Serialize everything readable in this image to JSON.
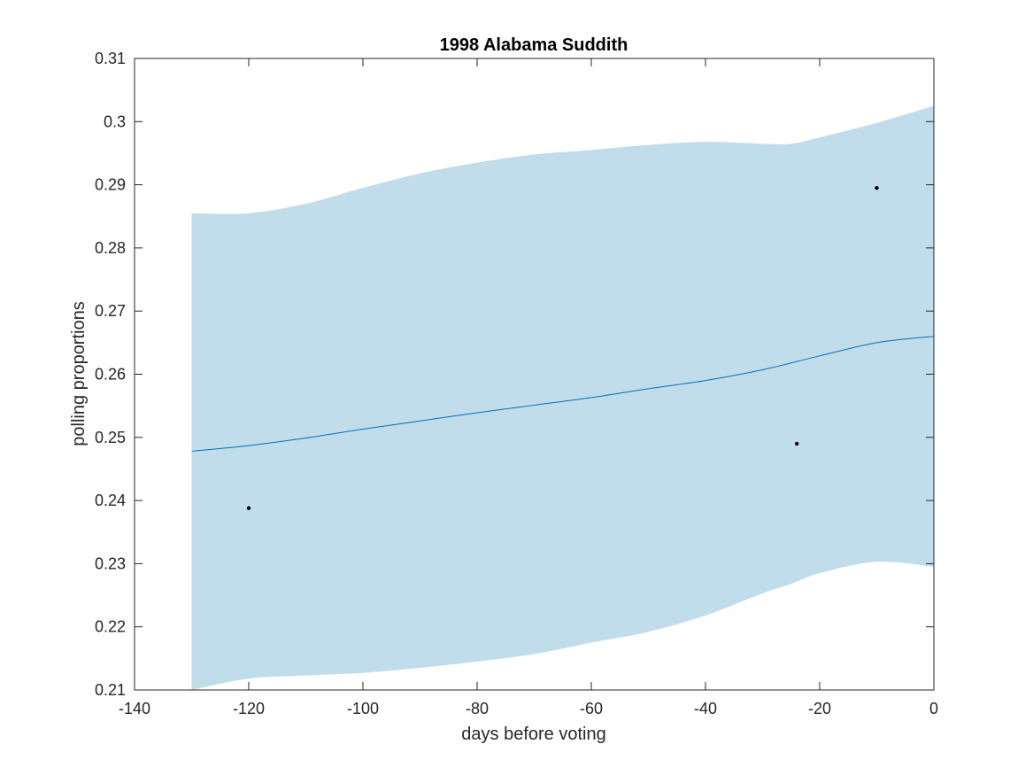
{
  "chart_data": {
    "type": "line",
    "title": "1998 Alabama Suddith",
    "xlabel": "days before voting",
    "ylabel": "polling proportions",
    "xlim": [
      -140,
      0
    ],
    "ylim": [
      0.21,
      0.31
    ],
    "xticks": [
      -140,
      -120,
      -100,
      -80,
      -60,
      -40,
      -20,
      0
    ],
    "xtick_labels": [
      "-140",
      "-120",
      "-100",
      "-80",
      "-60",
      "-40",
      "-20",
      "0"
    ],
    "yticks": [
      0.21,
      0.22,
      0.23,
      0.24,
      0.25,
      0.26,
      0.27,
      0.28,
      0.29,
      0.3,
      0.31
    ],
    "ytick_labels": [
      "0.21",
      "0.22",
      "0.23",
      "0.24",
      "0.25",
      "0.26",
      "0.27",
      "0.28",
      "0.29",
      "0.3",
      "0.31"
    ],
    "grid": false,
    "colors": {
      "band": "#c1dcea",
      "line": "#0072bd",
      "points": "#000000",
      "axis": "#262626"
    },
    "band": {
      "x": [
        -130,
        -120,
        -110,
        -100,
        -90,
        -80,
        -70,
        -60,
        -50,
        -40,
        -30,
        -25,
        -20,
        -10,
        0
      ],
      "upper": [
        0.2855,
        0.2855,
        0.287,
        0.2895,
        0.2918,
        0.2935,
        0.2948,
        0.2955,
        0.2963,
        0.2968,
        0.2965,
        0.2965,
        0.2975,
        0.2998,
        0.3025
      ],
      "lower": [
        0.21,
        0.2118,
        0.2123,
        0.2127,
        0.2135,
        0.2145,
        0.2157,
        0.2175,
        0.2192,
        0.2218,
        0.2253,
        0.2268,
        0.2285,
        0.2303,
        0.2295
      ]
    },
    "series": [
      {
        "x": [
          -130,
          -120,
          -110,
          -100,
          -90,
          -80,
          -70,
          -60,
          -50,
          -40,
          -30,
          -20,
          -10,
          0
        ],
        "values": [
          0.2478,
          0.2487,
          0.2499,
          0.2513,
          0.2526,
          0.2539,
          0.2551,
          0.2563,
          0.2577,
          0.259,
          0.2607,
          0.2629,
          0.265,
          0.266
        ]
      }
    ],
    "points": {
      "x": [
        -120,
        -24,
        -10
      ],
      "y": [
        0.2388,
        0.249,
        0.2895
      ]
    }
  }
}
